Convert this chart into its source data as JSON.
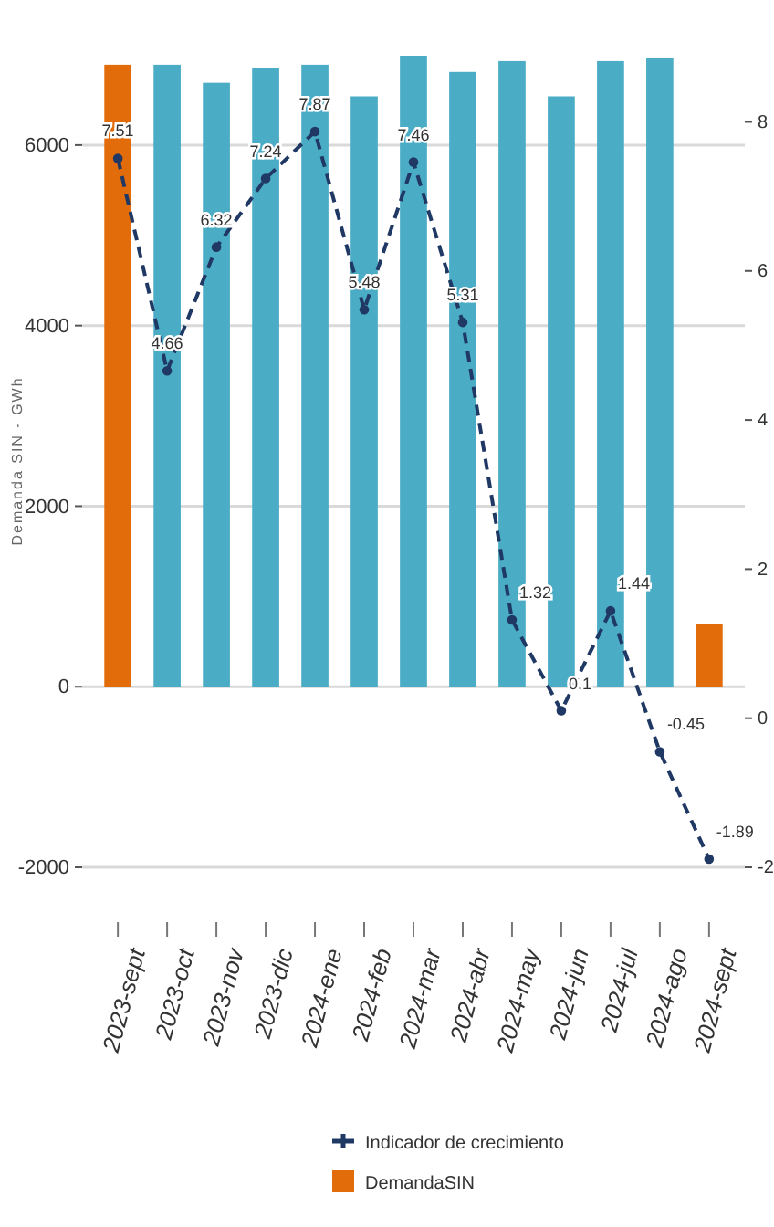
{
  "chart_data": {
    "type": "bar",
    "ylabel": "Demanda SIN - GWh",
    "categories": [
      "2023-sept",
      "2023-oct",
      "2023-nov",
      "2023-dic",
      "2024-ene",
      "2024-feb",
      "2024-mar",
      "2024-abr",
      "2024-may",
      "2024-jun",
      "2024-jul",
      "2024-ago",
      "2024-sept"
    ],
    "series": [
      {
        "name": "Indicador de crecimiento",
        "type": "line",
        "axis": "y2",
        "color": "#1f3864",
        "values": [
          7.51,
          4.66,
          6.32,
          7.24,
          7.87,
          5.48,
          7.46,
          5.31,
          1.32,
          0.1,
          1.44,
          -0.45,
          -1.89
        ],
        "value_labels": [
          "7.51",
          "4.66",
          "6.32",
          "7.24",
          "7.87",
          "5.48",
          "7.46",
          "5.31",
          "1.32",
          "0.1",
          "1.44",
          "-0.45",
          "-1.89"
        ]
      },
      {
        "name": "DemandaSIN",
        "color": "#e36c0a",
        "colors": [
          "#e36c0a",
          "#4bacc6",
          "#4bacc6",
          "#4bacc6",
          "#4bacc6",
          "#4bacc6",
          "#4bacc6",
          "#4bacc6",
          "#4bacc6",
          "#4bacc6",
          "#4bacc6",
          "#4bacc6",
          "#e36c0a"
        ],
        "values": [
          6890,
          6890,
          6690,
          6850,
          6890,
          6540,
          6990,
          6810,
          6930,
          6540,
          6930,
          6970,
          690
        ]
      }
    ],
    "ylim": [
      -2000,
      7000
    ],
    "yticks": [
      -2000,
      0,
      2000,
      4000,
      6000
    ],
    "y2lim": [
      -2,
      8.9
    ],
    "y2ticks": [
      -2,
      0,
      2,
      4,
      6,
      8
    ],
    "grid": "y",
    "legend": "bottom",
    "marker": "circle",
    "line_style": "dashed"
  }
}
